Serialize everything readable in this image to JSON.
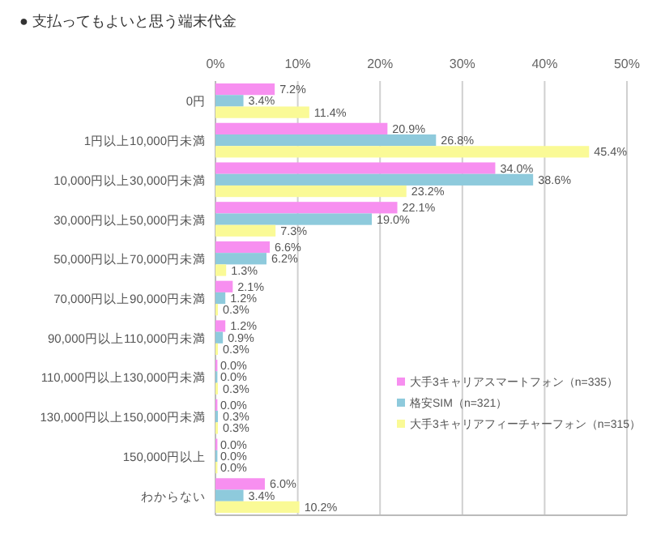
{
  "chart_data": {
    "type": "bar",
    "orientation": "horizontal",
    "title": "● 支払ってもよいと思う端末代金",
    "categories": [
      "0円",
      "1円以上10,000円未満",
      "10,000円以上30,000円未満",
      "30,000円以上50,000円未満",
      "50,000円以上70,000円未満",
      "70,000円以上90,000円未満",
      "90,000円以上110,000円未満",
      "110,000円以上130,000円未満",
      "130,000円以上150,000円未満",
      "150,000円以上",
      "わからない"
    ],
    "series": [
      {
        "name": "大手3キャリアスマートフォン（n=335）",
        "color": "#f78ff0",
        "values": [
          7.2,
          20.9,
          34.0,
          22.1,
          6.6,
          2.1,
          1.2,
          0.0,
          0.0,
          0.0,
          6.0
        ],
        "value_labels": [
          "7.2%",
          "20.9%",
          "34.0%",
          "22.1%",
          "6.6%",
          "2.1%",
          "1.2%",
          "0.0%",
          "0.0%",
          "0.0%",
          "6.0%"
        ]
      },
      {
        "name": "格安SIM（n=321）",
        "color": "#8ecadc",
        "values": [
          3.4,
          26.8,
          38.6,
          19.0,
          6.2,
          1.2,
          0.9,
          0.0,
          0.3,
          0.0,
          3.4
        ],
        "value_labels": [
          "3.4%",
          "26.8%",
          "38.6%",
          "19.0%",
          "6.2%",
          "1.2%",
          "0.9%",
          "0.0%",
          "0.3%",
          "0.0%",
          "3.4%"
        ]
      },
      {
        "name": "大手3キャリアフィーチャーフォン（n=315）",
        "color": "#fafa96",
        "values": [
          11.4,
          45.4,
          23.2,
          7.3,
          1.3,
          0.3,
          0.3,
          0.3,
          0.3,
          0.0,
          10.2
        ],
        "value_labels": [
          "11.4%",
          "45.4%",
          "23.2%",
          "7.3%",
          "1.3%",
          "0.3%",
          "0.3%",
          "0.3%",
          "0.3%",
          "0.0%",
          "10.2%"
        ]
      }
    ],
    "xlim": [
      0,
      50
    ],
    "xticks": [
      {
        "value": 0,
        "label": "0%"
      },
      {
        "value": 10,
        "label": "10%"
      },
      {
        "value": 20,
        "label": "20%"
      },
      {
        "value": 30,
        "label": "30%"
      },
      {
        "value": 40,
        "label": "40%"
      },
      {
        "value": 50,
        "label": "50%"
      }
    ],
    "grid": "x",
    "legend": "bottom right"
  }
}
